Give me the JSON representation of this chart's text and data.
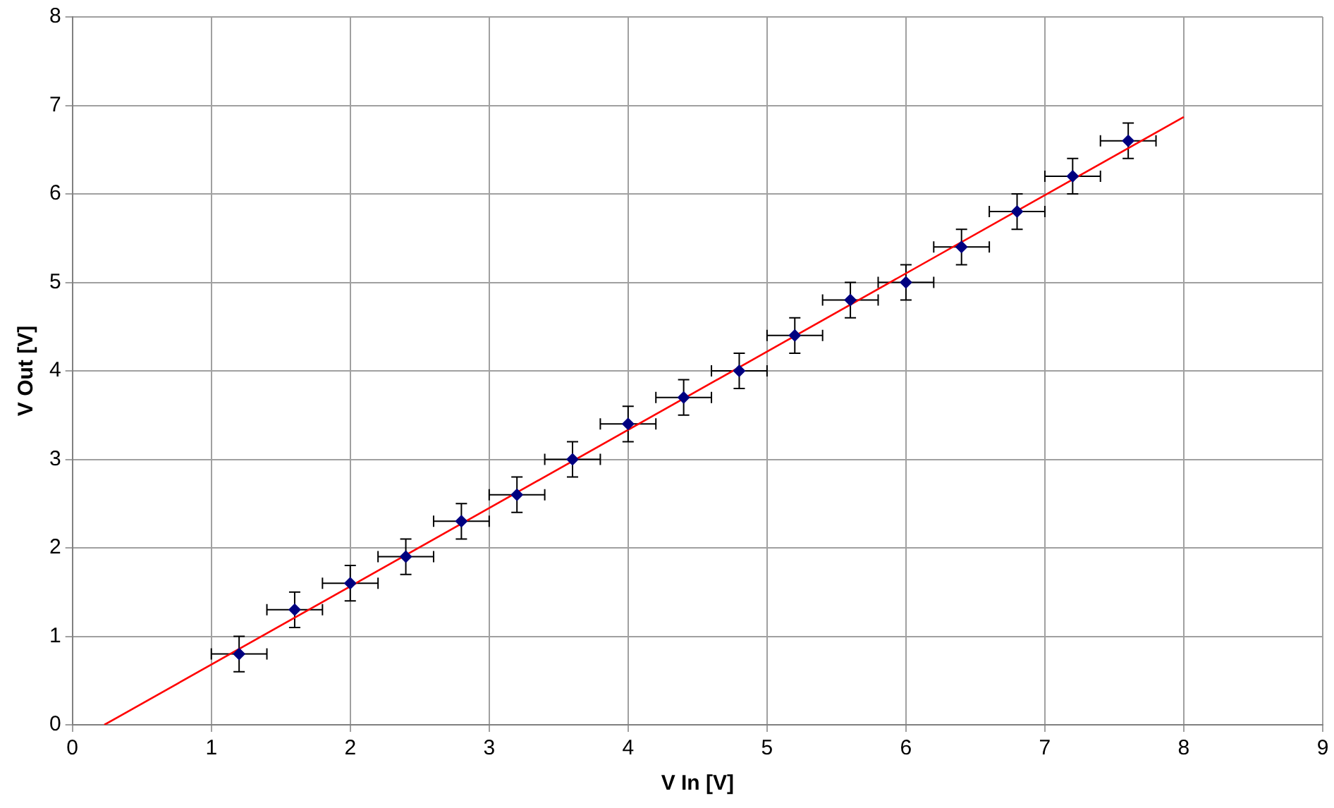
{
  "chart_data": {
    "type": "scatter",
    "xlabel": "V In [V]",
    "ylabel": "V Out [V]",
    "xlim": [
      0,
      9
    ],
    "ylim": [
      0,
      8
    ],
    "xticks": [
      0,
      1,
      2,
      3,
      4,
      5,
      6,
      7,
      8,
      9
    ],
    "yticks": [
      0,
      1,
      2,
      3,
      4,
      5,
      6,
      7,
      8
    ],
    "grid": true,
    "legend": false,
    "series": [
      {
        "type": "scatter",
        "color": "#000080",
        "marker": "diamond",
        "x": [
          1.2,
          1.6,
          2.0,
          2.4,
          2.8,
          3.2,
          3.6,
          4.0,
          4.4,
          4.8,
          5.2,
          5.6,
          6.0,
          6.4,
          6.8,
          7.2,
          7.6
        ],
        "values": [
          0.8,
          1.3,
          1.6,
          1.9,
          2.3,
          2.6,
          3.0,
          3.4,
          3.7,
          4.0,
          4.4,
          4.8,
          5.0,
          5.4,
          5.8,
          6.2,
          6.6
        ],
        "errors": [
          0.2,
          0.2,
          0.2,
          0.2,
          0.2,
          0.2,
          0.2,
          0.2,
          0.2,
          0.2,
          0.2,
          0.2,
          0.2,
          0.2,
          0.2,
          0.2,
          0.2
        ],
        "xerrors": [
          0.2,
          0.2,
          0.2,
          0.2,
          0.2,
          0.2,
          0.2,
          0.2,
          0.2,
          0.2,
          0.2,
          0.2,
          0.2,
          0.2,
          0.2,
          0.2,
          0.2
        ]
      },
      {
        "type": "line",
        "color": "#ff0000",
        "marker": "none",
        "line_style": "solid",
        "x": [
          0.23,
          8
        ],
        "values": [
          0,
          6.87
        ]
      }
    ]
  }
}
